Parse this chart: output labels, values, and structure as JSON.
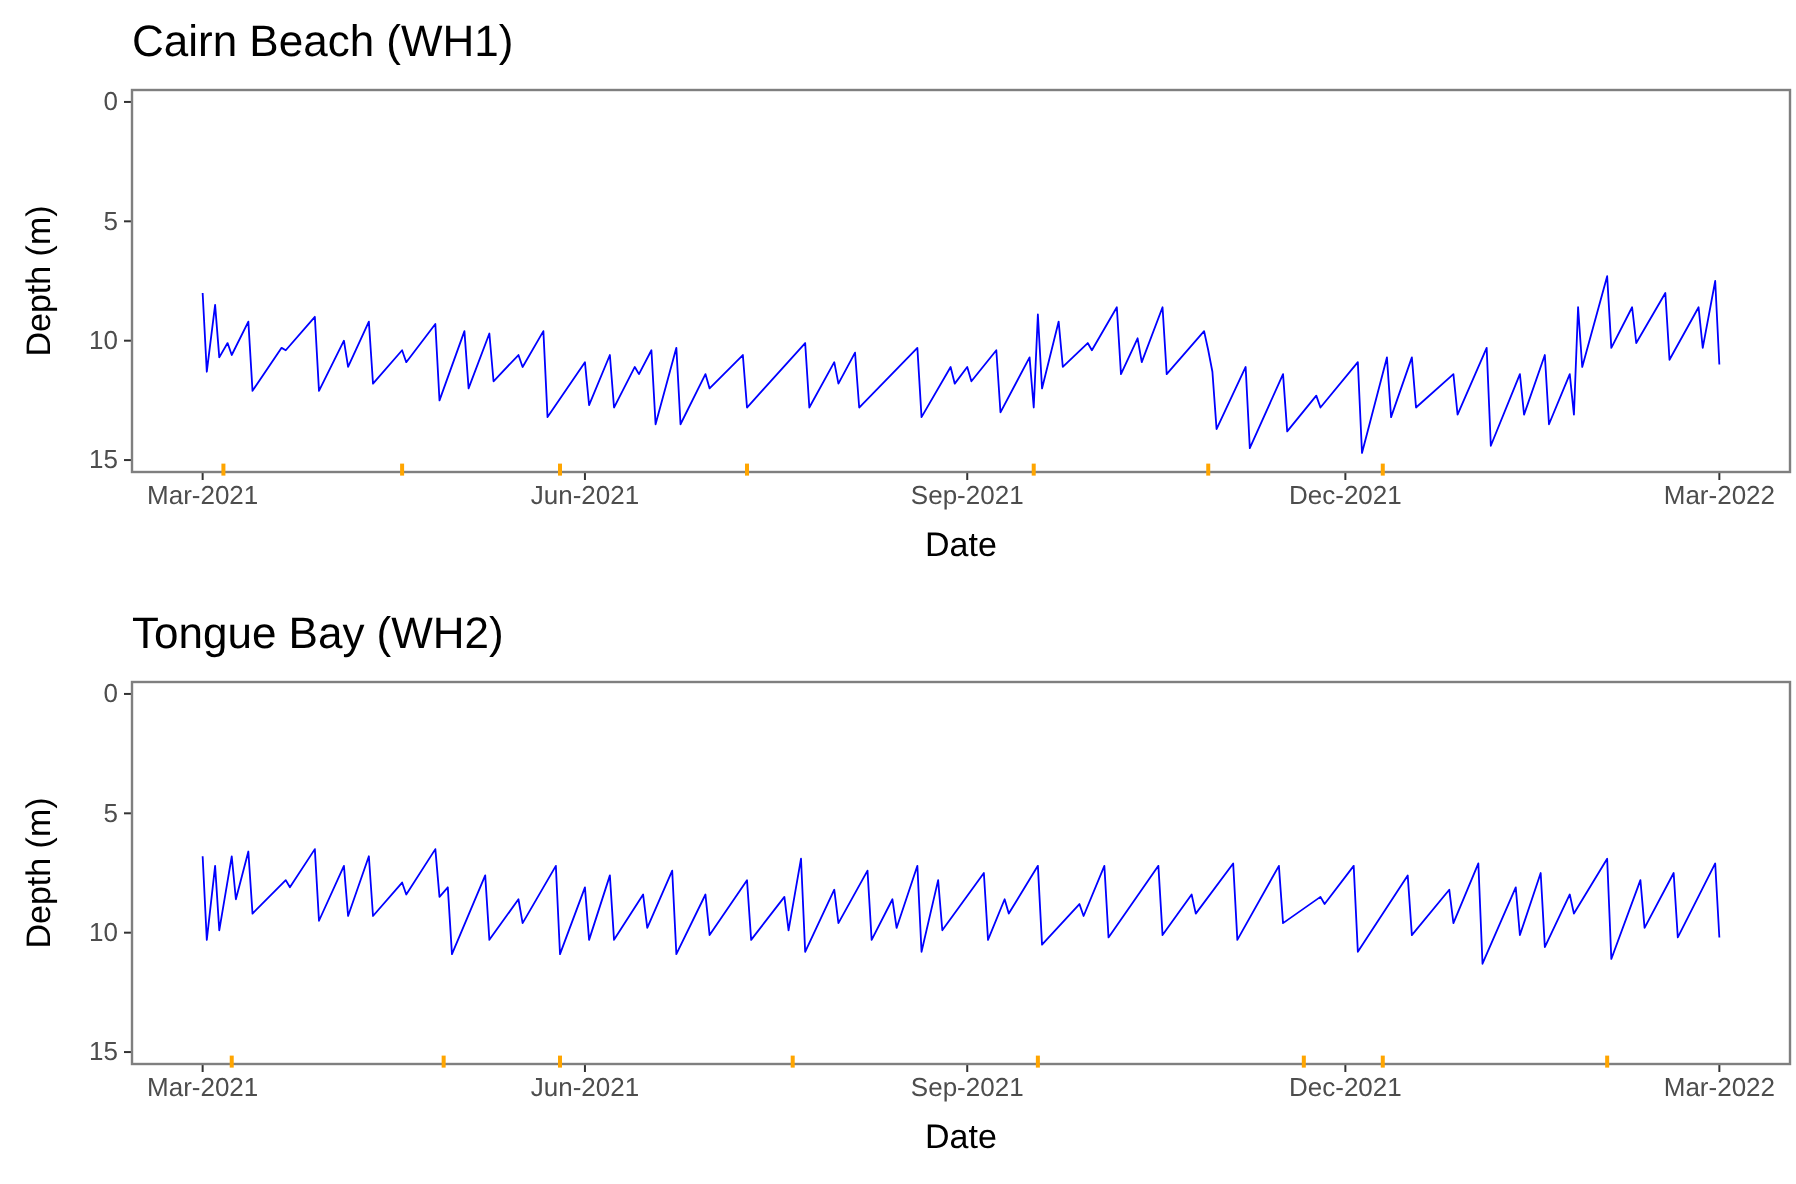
{
  "chart_data": [
    {
      "type": "line",
      "title": "Cairn Beach (WH1)",
      "xlabel": "Date",
      "ylabel": "Depth (m)",
      "xlim": [
        "2021-02-12",
        "2022-03-18"
      ],
      "ylim": [
        15.5,
        -0.5
      ],
      "xticks": [
        {
          "value": "2021-03-01",
          "label": "Mar-2021"
        },
        {
          "value": "2021-06-01",
          "label": "Jun-2021"
        },
        {
          "value": "2021-09-01",
          "label": "Sep-2021"
        },
        {
          "value": "2021-12-01",
          "label": "Dec-2021"
        },
        {
          "value": "2022-03-01",
          "label": "Mar-2022"
        }
      ],
      "yticks": [
        0,
        5,
        10,
        15
      ],
      "x": [
        "2021-03-01",
        "2021-03-02",
        "2021-03-04",
        "2021-03-05",
        "2021-03-07",
        "2021-03-08",
        "2021-03-12",
        "2021-03-13",
        "2021-03-20",
        "2021-03-21",
        "2021-03-28",
        "2021-03-29",
        "2021-04-04",
        "2021-04-05",
        "2021-04-10",
        "2021-04-11",
        "2021-04-18",
        "2021-04-19",
        "2021-04-26",
        "2021-04-27",
        "2021-05-03",
        "2021-05-04",
        "2021-05-09",
        "2021-05-10",
        "2021-05-16",
        "2021-05-17",
        "2021-05-22",
        "2021-05-23",
        "2021-06-01",
        "2021-06-02",
        "2021-06-07",
        "2021-06-08",
        "2021-06-13",
        "2021-06-14",
        "2021-06-17",
        "2021-06-18",
        "2021-06-23",
        "2021-06-24",
        "2021-06-30",
        "2021-07-01",
        "2021-07-09",
        "2021-07-10",
        "2021-07-24",
        "2021-07-25",
        "2021-07-31",
        "2021-08-01",
        "2021-08-05",
        "2021-08-06",
        "2021-08-20",
        "2021-08-21",
        "2021-08-28",
        "2021-08-29",
        "2021-09-01",
        "2021-09-02",
        "2021-09-08",
        "2021-09-09",
        "2021-09-16",
        "2021-09-17",
        "2021-09-18",
        "2021-09-19",
        "2021-09-23",
        "2021-09-24",
        "2021-09-30",
        "2021-10-01",
        "2021-10-07",
        "2021-10-08",
        "2021-10-12",
        "2021-10-13",
        "2021-10-18",
        "2021-10-19",
        "2021-10-28",
        "2021-10-29",
        "2021-10-30",
        "2021-10-31",
        "2021-11-07",
        "2021-11-08",
        "2021-11-16",
        "2021-11-17",
        "2021-11-24",
        "2021-11-25",
        "2021-12-04",
        "2021-12-05",
        "2021-12-11",
        "2021-12-12",
        "2021-12-17",
        "2021-12-18",
        "2021-12-27",
        "2021-12-28",
        "2022-01-04",
        "2022-01-05",
        "2022-01-12",
        "2022-01-13",
        "2022-01-18",
        "2022-01-19",
        "2022-01-24",
        "2022-01-25",
        "2022-01-26",
        "2022-01-27",
        "2022-02-02",
        "2022-02-03",
        "2022-02-08",
        "2022-02-09",
        "2022-02-16",
        "2022-02-17",
        "2022-02-24",
        "2022-02-25",
        "2022-02-28",
        "2022-03-01"
      ],
      "series": [
        {
          "color": "#0000ff",
          "values": [
            8.0,
            11.3,
            8.5,
            10.7,
            10.1,
            10.6,
            9.2,
            12.1,
            10.3,
            10.4,
            9.0,
            12.1,
            10.0,
            11.1,
            9.2,
            11.8,
            10.4,
            10.9,
            9.3,
            12.5,
            9.6,
            12.0,
            9.7,
            11.7,
            10.6,
            11.1,
            9.6,
            13.2,
            10.9,
            12.7,
            10.6,
            12.8,
            11.1,
            11.4,
            10.4,
            13.5,
            10.3,
            13.5,
            11.4,
            12.0,
            10.6,
            12.8,
            10.1,
            12.8,
            10.9,
            11.8,
            10.5,
            12.8,
            10.3,
            13.2,
            11.1,
            11.8,
            11.1,
            11.7,
            10.4,
            13.0,
            10.7,
            12.8,
            8.9,
            12.0,
            9.2,
            11.1,
            10.1,
            10.4,
            8.6,
            11.4,
            9.9,
            10.9,
            8.6,
            11.4,
            9.6,
            10.4,
            11.3,
            13.7,
            11.1,
            14.5,
            11.4,
            13.8,
            12.3,
            12.8,
            10.9,
            14.7,
            10.7,
            13.2,
            10.7,
            12.8,
            11.4,
            13.1,
            10.3,
            14.4,
            11.4,
            13.1,
            10.6,
            13.5,
            11.4,
            13.1,
            8.6,
            11.1,
            7.3,
            10.3,
            8.6,
            10.1,
            8.0,
            10.8,
            8.6,
            10.3,
            7.5,
            11.0
          ]
        },
        {
          "type": "scatter",
          "color": "#ffa500",
          "x": [
            "2021-03-06",
            "2021-04-18",
            "2021-05-26",
            "2021-07-10",
            "2021-09-17",
            "2021-10-29",
            "2021-12-10"
          ],
          "values": [
            15.4,
            15.4,
            15.4,
            15.4,
            15.4,
            15.4,
            15.4
          ]
        }
      ]
    },
    {
      "type": "line",
      "title": "Tongue Bay (WH2)",
      "xlabel": "Date",
      "ylabel": "Depth (m)",
      "xlim": [
        "2021-02-12",
        "2022-03-18"
      ],
      "ylim": [
        15.5,
        -0.5
      ],
      "xticks": [
        {
          "value": "2021-03-01",
          "label": "Mar-2021"
        },
        {
          "value": "2021-06-01",
          "label": "Jun-2021"
        },
        {
          "value": "2021-09-01",
          "label": "Sep-2021"
        },
        {
          "value": "2021-12-01",
          "label": "Dec-2021"
        },
        {
          "value": "2022-03-01",
          "label": "Mar-2022"
        }
      ],
      "yticks": [
        0,
        5,
        10,
        15
      ],
      "x": [
        "2021-03-01",
        "2021-03-02",
        "2021-03-04",
        "2021-03-05",
        "2021-03-08",
        "2021-03-09",
        "2021-03-12",
        "2021-03-13",
        "2021-03-21",
        "2021-03-22",
        "2021-03-28",
        "2021-03-29",
        "2021-04-04",
        "2021-04-05",
        "2021-04-10",
        "2021-04-11",
        "2021-04-18",
        "2021-04-19",
        "2021-04-26",
        "2021-04-27",
        "2021-04-29",
        "2021-04-30",
        "2021-05-08",
        "2021-05-09",
        "2021-05-16",
        "2021-05-17",
        "2021-05-25",
        "2021-05-26",
        "2021-06-01",
        "2021-06-02",
        "2021-06-07",
        "2021-06-08",
        "2021-06-15",
        "2021-06-16",
        "2021-06-22",
        "2021-06-23",
        "2021-06-30",
        "2021-07-01",
        "2021-07-10",
        "2021-07-11",
        "2021-07-19",
        "2021-07-20",
        "2021-07-23",
        "2021-07-24",
        "2021-07-31",
        "2021-08-01",
        "2021-08-08",
        "2021-08-09",
        "2021-08-14",
        "2021-08-15",
        "2021-08-20",
        "2021-08-21",
        "2021-08-25",
        "2021-08-26",
        "2021-09-05",
        "2021-09-06",
        "2021-09-10",
        "2021-09-11",
        "2021-09-18",
        "2021-09-19",
        "2021-09-28",
        "2021-09-29",
        "2021-10-04",
        "2021-10-05",
        "2021-10-17",
        "2021-10-18",
        "2021-10-25",
        "2021-10-26",
        "2021-11-04",
        "2021-11-05",
        "2021-11-15",
        "2021-11-16",
        "2021-11-25",
        "2021-11-26",
        "2021-12-03",
        "2021-12-04",
        "2021-12-16",
        "2021-12-17",
        "2021-12-26",
        "2021-12-27",
        "2022-01-02",
        "2022-01-03",
        "2022-01-11",
        "2022-01-12",
        "2022-01-17",
        "2022-01-18",
        "2022-01-24",
        "2022-01-25",
        "2022-02-02",
        "2022-02-03",
        "2022-02-10",
        "2022-02-11",
        "2022-02-18",
        "2022-02-19",
        "2022-02-28",
        "2022-03-01"
      ],
      "series": [
        {
          "color": "#0000ff",
          "values": [
            6.8,
            10.3,
            7.2,
            9.9,
            6.8,
            8.6,
            6.6,
            9.2,
            7.8,
            8.1,
            6.5,
            9.5,
            7.2,
            9.3,
            6.8,
            9.3,
            7.9,
            8.4,
            6.5,
            8.5,
            8.1,
            10.9,
            7.6,
            10.3,
            8.6,
            9.6,
            7.2,
            10.9,
            8.1,
            10.3,
            7.6,
            10.3,
            8.4,
            9.8,
            7.4,
            10.9,
            8.4,
            10.1,
            7.8,
            10.3,
            8.5,
            9.9,
            6.9,
            10.8,
            8.2,
            9.6,
            7.4,
            10.3,
            8.6,
            9.8,
            7.2,
            10.8,
            7.8,
            9.9,
            7.5,
            10.3,
            8.6,
            9.2,
            7.2,
            10.5,
            8.8,
            9.3,
            7.2,
            10.2,
            7.2,
            10.1,
            8.4,
            9.2,
            7.1,
            10.3,
            7.2,
            9.6,
            8.5,
            8.8,
            7.2,
            10.8,
            7.6,
            10.1,
            8.2,
            9.6,
            7.1,
            11.3,
            8.1,
            10.1,
            7.5,
            10.6,
            8.4,
            9.2,
            6.9,
            11.1,
            7.8,
            9.8,
            7.5,
            10.2,
            7.1,
            10.2
          ]
        },
        {
          "type": "scatter",
          "color": "#ffa500",
          "x": [
            "2021-03-08",
            "2021-04-28",
            "2021-05-26",
            "2021-07-21",
            "2021-09-18",
            "2021-11-21",
            "2021-12-10",
            "2022-02-02"
          ],
          "values": [
            15.4,
            15.4,
            15.4,
            15.4,
            15.4,
            15.4,
            15.4,
            15.4
          ]
        }
      ]
    }
  ]
}
